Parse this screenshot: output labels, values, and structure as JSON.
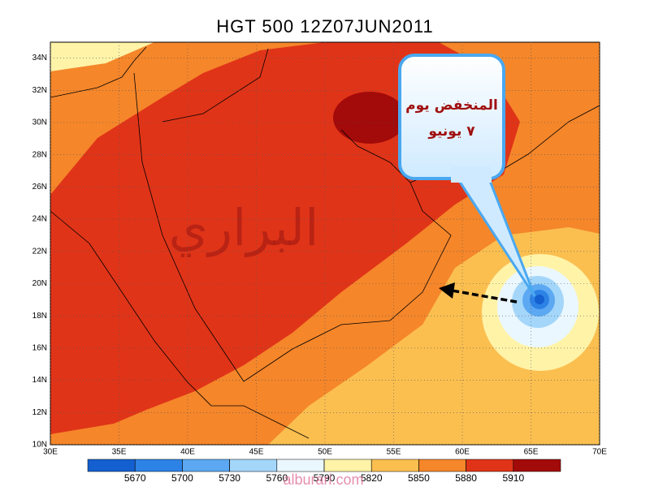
{
  "title": "HGT 500 12Z07JUN2011",
  "lat_ticks": [
    {
      "value": 10,
      "label": "10N"
    },
    {
      "value": 12,
      "label": "12N"
    },
    {
      "value": 14,
      "label": "14N"
    },
    {
      "value": 16,
      "label": "16N"
    },
    {
      "value": 18,
      "label": "18N"
    },
    {
      "value": 20,
      "label": "20N"
    },
    {
      "value": 22,
      "label": "22N"
    },
    {
      "value": 24,
      "label": "24N"
    },
    {
      "value": 26,
      "label": "26N"
    },
    {
      "value": 28,
      "label": "28N"
    },
    {
      "value": 30,
      "label": "30N"
    },
    {
      "value": 32,
      "label": "32N"
    },
    {
      "value": 34,
      "label": "34N"
    }
  ],
  "lon_ticks": [
    {
      "value": 30,
      "label": "30E"
    },
    {
      "value": 35,
      "label": "35E"
    },
    {
      "value": 40,
      "label": "40E"
    },
    {
      "value": 45,
      "label": "45E"
    },
    {
      "value": 50,
      "label": "50E"
    },
    {
      "value": 55,
      "label": "55E"
    },
    {
      "value": 60,
      "label": "60E"
    },
    {
      "value": 65,
      "label": "65E"
    },
    {
      "value": 70,
      "label": "70E"
    }
  ],
  "colorbar": {
    "levels": [
      5670,
      5700,
      5730,
      5760,
      5790,
      5820,
      5850,
      5880,
      5910
    ],
    "colors": [
      "#1560d0",
      "#2d82e6",
      "#5ca8f2",
      "#a4d6fa",
      "#eaf7ff",
      "#fff3a8",
      "#fbbf50",
      "#f5862a",
      "#e03418",
      "#a30a0a"
    ]
  },
  "callout": {
    "lines": [
      "المنخفض يوم",
      "٧ يونيو"
    ]
  },
  "watermark": "البراري",
  "website": "alburari.com"
}
